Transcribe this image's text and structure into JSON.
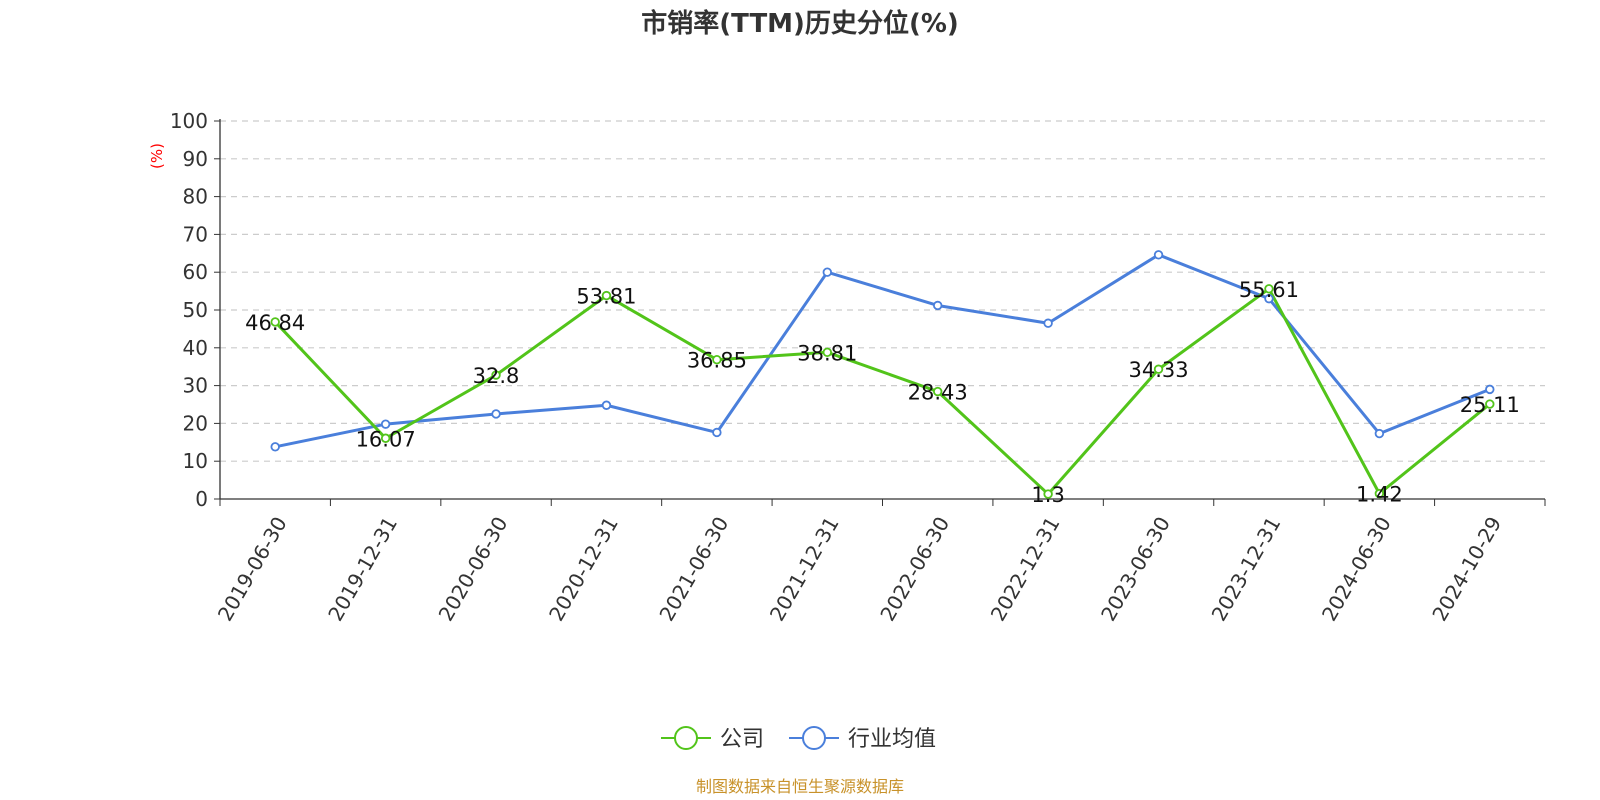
{
  "chart_data": {
    "type": "line",
    "title": "市销率(TTM)历史分位(%)",
    "ylabel": "(%)",
    "xlabel": "",
    "ylim": [
      0,
      100
    ],
    "yticks": [
      0,
      10,
      20,
      30,
      40,
      50,
      60,
      70,
      80,
      90,
      100
    ],
    "categories": [
      "2019-06-30",
      "2019-12-31",
      "2020-06-30",
      "2020-12-31",
      "2021-06-30",
      "2021-12-31",
      "2022-06-30",
      "2022-12-31",
      "2023-06-30",
      "2023-12-31",
      "2024-06-30",
      "2024-10-29"
    ],
    "grid": true,
    "legend_position": "bottom",
    "series": [
      {
        "name": "公司",
        "color": "#52c41a",
        "show_labels": true,
        "values": [
          46.84,
          16.07,
          32.8,
          53.81,
          36.85,
          38.81,
          28.43,
          1.3,
          34.33,
          55.61,
          1.42,
          25.11
        ]
      },
      {
        "name": "行业均值",
        "color": "#4a7fdb",
        "show_labels": false,
        "values": [
          13.8,
          19.8,
          22.5,
          24.8,
          17.6,
          60.0,
          51.2,
          46.5,
          64.6,
          53.0,
          17.3,
          29.0
        ]
      }
    ],
    "source": "制图数据来自恒生聚源数据库"
  }
}
